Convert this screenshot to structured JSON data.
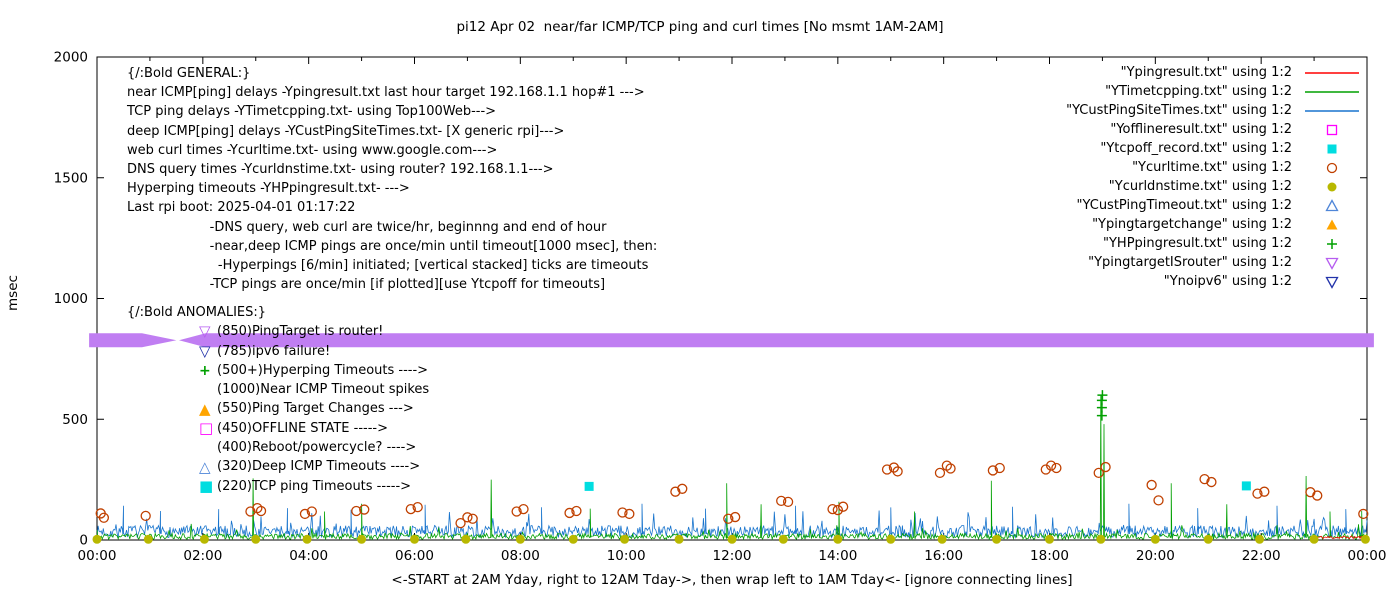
{
  "title": "pi12 Apr 02  near/far ICMP/TCP ping and curl times [No msmt 1AM-2AM]",
  "ylabel": "msec",
  "xlabel": "<-START at 2AM Yday, right to 12AM Tday->, then wrap left to 1AM Tday<- [ignore connecting lines]",
  "general": {
    "header": "{/:Bold GENERAL:}",
    "lines": [
      "near ICMP[ping] delays -Ypingresult.txt last hour target 192.168.1.1 hop#1 --->",
      "TCP ping delays -YTimetcpping.txt- using Top100Web--->",
      "deep ICMP[ping] delays -YCustPingSiteTimes.txt- [X generic rpi]--->",
      "web curl times -Ycurltime.txt- using www.google.com--->",
      "DNS query times -Ycurldnstime.txt- using router? 192.168.1.1--->",
      "Hyperping timeouts -YHPpingresult.txt- --->",
      "Last rpi boot: 2025-04-01 01:17:22",
      "                    -DNS query, web curl are twice/hr, beginnng and end of hour",
      "                    -near,deep ICMP pings are once/min until timeout[1000 msec], then:",
      "                      -Hyperpings [6/min] initiated; [vertical stacked] ticks are timeouts",
      "                    -TCP pings are once/min [if plotted][use Ytcpoff for timeouts]"
    ]
  },
  "anomalies": {
    "header": "{/:Bold ANOMALIES:}",
    "items": [
      {
        "marker": "tri-down-open",
        "color": "#b65df0",
        "text": "(850)PingTarget is router!"
      },
      {
        "marker": "tri-down-open",
        "color": "#2233aa",
        "text": "(785)ipv6 failure!"
      },
      {
        "marker": "plus",
        "color": "#00a000",
        "text": "(500+)Hyperping Timeouts ---->"
      },
      {
        "marker": "none",
        "color": "",
        "text": "(1000)Near ICMP Timeout spikes"
      },
      {
        "marker": "tri-up-filled",
        "color": "#ffa500",
        "text": "(550)Ping Target Changes --->"
      },
      {
        "marker": "square-open",
        "color": "#ff00ff",
        "text": "(450)OFFLINE STATE ----->"
      },
      {
        "marker": "none",
        "color": "",
        "text": "(400)Reboot/powercycle? ---->"
      },
      {
        "marker": "tri-up-open",
        "color": "#4f86d8",
        "text": "(320)Deep ICMP Timeouts ---->"
      },
      {
        "marker": "square-filled",
        "color": "#00dde0",
        "text": "(220)TCP ping Timeouts ----->"
      }
    ]
  },
  "legend": [
    {
      "label": "\"Ypingresult.txt\" using 1:2",
      "marker": "line",
      "color": "#ff0000"
    },
    {
      "label": "\"YTimetcpping.txt\" using 1:2",
      "marker": "line",
      "color": "#00a000"
    },
    {
      "label": "\"YCustPingSiteTimes.txt\" using 1:2",
      "marker": "line",
      "color": "#1874cd"
    },
    {
      "label": "\"Yofflineresult.txt\" using 1:2",
      "marker": "square-open",
      "color": "#ff00ff"
    },
    {
      "label": "\"Ytcpoff_record.txt\" using 1:2",
      "marker": "square-filled",
      "color": "#00dde0"
    },
    {
      "label": "\"Ycurltime.txt\" using 1:2",
      "marker": "circle-open",
      "color": "#c04000"
    },
    {
      "label": "\"Ycurldnstime.txt\" using 1:2",
      "marker": "circle-filled",
      "color": "#b8b800"
    },
    {
      "label": "\"YCustPingTimeout.txt\" using 1:2",
      "marker": "tri-up-open",
      "color": "#4f86d8"
    },
    {
      "label": "\"Ypingtargetchange\" using 1:2",
      "marker": "tri-up-filled",
      "color": "#ffa500"
    },
    {
      "label": "\"YHPpingresult.txt\" using 1:2",
      "marker": "plus",
      "color": "#00a000"
    },
    {
      "label": "\"YpingtargetISrouter\" using 1:2",
      "marker": "tri-down-open",
      "color": "#b65df0"
    },
    {
      "label": "\"Ynoipv6\" using 1:2",
      "marker": "tri-down-open",
      "color": "#2233aa"
    }
  ],
  "chart_data": {
    "type": "line",
    "x_unit": "hours",
    "xlim": [
      0,
      24
    ],
    "ylim": [
      0,
      2000
    ],
    "yticks": [
      0,
      500,
      1000,
      1500,
      2000
    ],
    "xticks": [
      {
        "h": 0,
        "label": "00:00"
      },
      {
        "h": 2,
        "label": "02:00"
      },
      {
        "h": 4,
        "label": "04:00"
      },
      {
        "h": 6,
        "label": "06:00"
      },
      {
        "h": 8,
        "label": "08:00"
      },
      {
        "h": 10,
        "label": "10:00"
      },
      {
        "h": 12,
        "label": "12:00"
      },
      {
        "h": 14,
        "label": "14:00"
      },
      {
        "h": 16,
        "label": "16:00"
      },
      {
        "h": 18,
        "label": "18:00"
      },
      {
        "h": 20,
        "label": "20:00"
      },
      {
        "h": 22,
        "label": "22:00"
      },
      {
        "h": 24,
        "label": "00:00"
      }
    ],
    "series": [
      {
        "name": "YpingtargetISrouter+Ynoipv6",
        "type": "band",
        "color": "#c07ef2",
        "value_msec": 850,
        "segments": [
          [
            [
              -0.15,
              856
            ],
            [
              0.85,
              856
            ],
            [
              1.5,
              827
            ],
            [
              0.85,
              798
            ],
            [
              -0.15,
              798
            ]
          ],
          [
            [
              1.55,
              827
            ],
            [
              2.05,
              856
            ],
            [
              24.13,
              856
            ],
            [
              24.13,
              798
            ],
            [
              2.05,
              798
            ]
          ]
        ]
      },
      {
        "name": "YCustPingSiteTimes.txt",
        "type": "noise-line",
        "color": "#1874cd",
        "seed": 7,
        "range": [
          0,
          24
        ],
        "base": 10,
        "amp": 50,
        "burst": 75,
        "burst_p": 0.06,
        "spikes": [
          [
            0.5,
            142
          ],
          [
            1.2,
            120
          ],
          [
            2.3,
            128
          ],
          [
            3.6,
            132
          ],
          [
            4.8,
            125
          ],
          [
            6.2,
            146
          ],
          [
            8.4,
            136
          ],
          [
            10.3,
            150
          ],
          [
            11.5,
            130
          ],
          [
            13.2,
            142
          ],
          [
            15.0,
            135
          ],
          [
            17.3,
            138
          ],
          [
            19.5,
            150
          ],
          [
            20.8,
            132
          ],
          [
            22.3,
            142
          ],
          [
            23.6,
            128
          ]
        ]
      },
      {
        "name": "YTimetcpping.txt",
        "type": "noise-line",
        "color": "#00a000",
        "seed": 3,
        "range": [
          0,
          24
        ],
        "base": 3,
        "amp": 24,
        "burst": 45,
        "burst_p": 0.04,
        "spikes": [
          [
            2.95,
            255
          ],
          [
            4.3,
            118
          ],
          [
            5.0,
            150
          ],
          [
            7.45,
            250
          ],
          [
            9.32,
            130
          ],
          [
            11.9,
            235
          ],
          [
            12.55,
            148
          ],
          [
            14.02,
            158
          ],
          [
            15.45,
            118
          ],
          [
            16.9,
            245
          ],
          [
            18.97,
            600
          ],
          [
            19.03,
            480
          ],
          [
            20.3,
            235
          ],
          [
            21.35,
            148
          ],
          [
            22.85,
            265
          ],
          [
            23.3,
            118
          ],
          [
            23.9,
            120
          ]
        ]
      },
      {
        "name": "Ypingresult.txt",
        "type": "noise-line",
        "color": "#ff0000",
        "seed": 11,
        "range": [
          23.05,
          23.98
        ],
        "base": 5,
        "amp": 12,
        "burst": 0,
        "burst_p": 0,
        "spikes": []
      },
      {
        "name": "Ycurltime.txt",
        "type": "scatter",
        "marker": "circle-open",
        "color": "#c04000",
        "points": [
          [
            0.07,
            110
          ],
          [
            0.13,
            92
          ],
          [
            0.92,
            100
          ],
          [
            2.9,
            118
          ],
          [
            3.03,
            132
          ],
          [
            3.1,
            120
          ],
          [
            3.93,
            108
          ],
          [
            4.06,
            118
          ],
          [
            4.9,
            120
          ],
          [
            5.05,
            126
          ],
          [
            5.93,
            128
          ],
          [
            6.06,
            136
          ],
          [
            6.87,
            70
          ],
          [
            7.0,
            94
          ],
          [
            7.1,
            88
          ],
          [
            7.93,
            118
          ],
          [
            8.06,
            128
          ],
          [
            8.93,
            112
          ],
          [
            9.06,
            120
          ],
          [
            9.93,
            114
          ],
          [
            10.06,
            108
          ],
          [
            10.93,
            200
          ],
          [
            11.06,
            212
          ],
          [
            11.93,
            88
          ],
          [
            12.06,
            95
          ],
          [
            12.93,
            162
          ],
          [
            13.06,
            158
          ],
          [
            13.9,
            128
          ],
          [
            14.0,
            124
          ],
          [
            14.1,
            138
          ],
          [
            14.93,
            292
          ],
          [
            15.06,
            300
          ],
          [
            15.13,
            284
          ],
          [
            15.93,
            278
          ],
          [
            16.06,
            308
          ],
          [
            16.13,
            296
          ],
          [
            16.93,
            288
          ],
          [
            17.06,
            298
          ],
          [
            17.93,
            292
          ],
          [
            18.03,
            308
          ],
          [
            18.13,
            298
          ],
          [
            18.93,
            278
          ],
          [
            19.06,
            302
          ],
          [
            19.93,
            228
          ],
          [
            20.06,
            164
          ],
          [
            20.93,
            252
          ],
          [
            21.06,
            240
          ],
          [
            21.93,
            192
          ],
          [
            22.06,
            200
          ],
          [
            22.93,
            198
          ],
          [
            23.06,
            184
          ],
          [
            23.93,
            108
          ]
        ]
      },
      {
        "name": "Ycurldnstime.txt",
        "type": "scatter",
        "marker": "circle-filled",
        "color": "#b8b800",
        "points": [
          [
            0,
            3
          ],
          [
            0.97,
            3
          ],
          [
            2.03,
            3
          ],
          [
            3,
            3
          ],
          [
            3.97,
            3
          ],
          [
            5,
            3
          ],
          [
            6,
            3
          ],
          [
            6.97,
            3
          ],
          [
            8,
            3
          ],
          [
            9,
            3
          ],
          [
            9.97,
            3
          ],
          [
            11,
            3
          ],
          [
            12,
            3
          ],
          [
            12.97,
            3
          ],
          [
            14,
            3
          ],
          [
            15,
            3
          ],
          [
            15.97,
            3
          ],
          [
            17,
            3
          ],
          [
            18,
            3
          ],
          [
            18.97,
            3
          ],
          [
            20,
            3
          ],
          [
            21,
            3
          ],
          [
            21.97,
            3
          ],
          [
            23,
            3
          ],
          [
            23.97,
            3
          ]
        ]
      },
      {
        "name": "Ytcpoff_record.txt",
        "type": "scatter",
        "marker": "square-filled",
        "color": "#00dde0",
        "points": [
          [
            9.3,
            222
          ],
          [
            21.72,
            224
          ]
        ]
      },
      {
        "name": "YHPpingresult.txt",
        "type": "scatter",
        "marker": "plus",
        "color": "#00a000",
        "points": [
          [
            18.99,
            515
          ],
          [
            18.99,
            548
          ],
          [
            18.99,
            578
          ],
          [
            19.0,
            600
          ]
        ]
      }
    ]
  }
}
